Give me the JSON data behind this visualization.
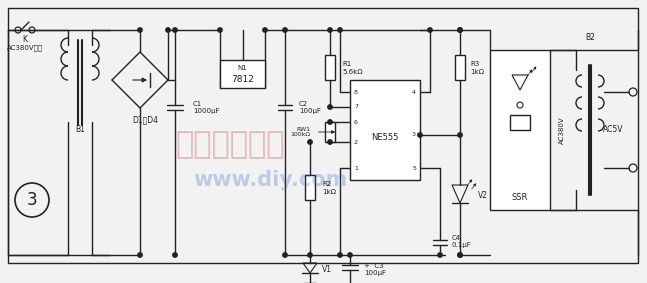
{
  "bg_color": "#f2f2f2",
  "lc": "#222222",
  "lw": 1.0,
  "labels": {
    "K": "K",
    "input": "AC380V输入",
    "B1": "B1",
    "D1D4": "D1～D4",
    "C1": "C1\n1000μF",
    "C2": "C2\n100μF",
    "N1": "N1",
    "N1_val": "7812",
    "R1": "R1\n5.6kΩ",
    "RW1": "RW1\n100kΩ",
    "R2": "R2\n1kΩ",
    "V1": "V1",
    "C3": "+  C3\n100μF",
    "C4": "C4\n0.1μF",
    "NE555": "NE555",
    "R3": "R3\n1kΩ",
    "V2": "V2",
    "SSR": "SSR",
    "B2": "B2",
    "AC380V": "AC380V",
    "AC5V": "AC5V",
    "circle3": "3",
    "wm1": "电子制作天地",
    "wm2": "www.diy.com"
  }
}
